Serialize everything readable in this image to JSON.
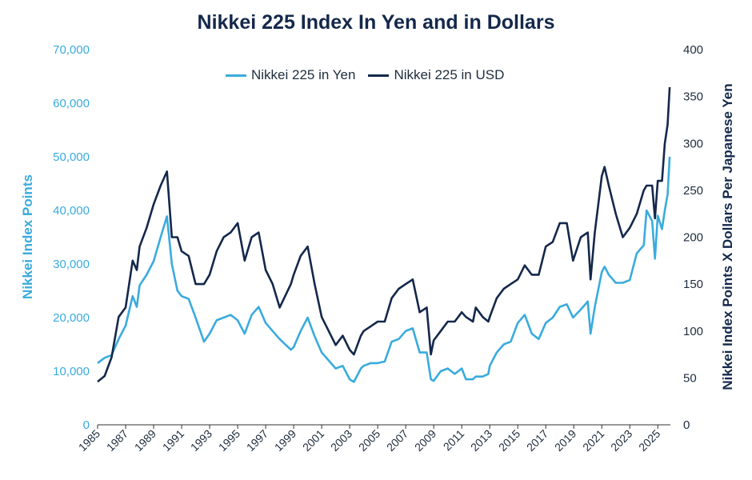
{
  "colors": {
    "yen": "#3aabdd",
    "usd": "#14284b",
    "axis": "#1f2d3d",
    "left_tick": "#3aabdd"
  },
  "chart_data": {
    "type": "line",
    "title": "Nikkei 225 Index In Yen and in Dollars",
    "xlabel": "",
    "ylabel": "Nikkei Index Points",
    "y2label": "Nikkei Index Points X Dollars Per Japanese Yen",
    "xlim": [
      1985,
      2025.9
    ],
    "ylim": [
      0,
      70000
    ],
    "y2lim": [
      0,
      400
    ],
    "x_ticks": [
      "1985",
      "1987",
      "1989",
      "1991",
      "1993",
      "1995",
      "1997",
      "1999",
      "2001",
      "2003",
      "2005",
      "2007",
      "2009",
      "2011",
      "2013",
      "2015",
      "2017",
      "2019",
      "2021",
      "2023",
      "2025"
    ],
    "y_ticks": [
      "0",
      "10,000",
      "20,000",
      "30,000",
      "40,000",
      "50,000",
      "60,000",
      "70,000"
    ],
    "y2_ticks": [
      "0",
      "50",
      "100",
      "150",
      "200",
      "250",
      "300",
      "350",
      "400"
    ],
    "legend": {
      "position": "top-center",
      "entries": [
        "Nikkei 225 in Yen",
        "Nikkei 225 in USD"
      ]
    },
    "series": [
      {
        "name": "Nikkei 225 in Yen",
        "axis": "left",
        "x": [
          1985.0,
          1985.5,
          1986.0,
          1986.5,
          1987.0,
          1987.5,
          1987.8,
          1988.0,
          1988.5,
          1989.0,
          1989.5,
          1989.95,
          1990.3,
          1990.7,
          1991.0,
          1991.5,
          1992.0,
          1992.6,
          1993.0,
          1993.5,
          1994.0,
          1994.5,
          1995.0,
          1995.5,
          1996.0,
          1996.5,
          1997.0,
          1997.5,
          1998.0,
          1998.8,
          1999.0,
          1999.5,
          2000.0,
          2000.5,
          2001.0,
          2001.5,
          2002.0,
          2002.5,
          2003.0,
          2003.3,
          2003.8,
          2004.0,
          2004.5,
          2005.0,
          2005.5,
          2006.0,
          2006.5,
          2007.0,
          2007.5,
          2008.0,
          2008.5,
          2008.8,
          2009.0,
          2009.5,
          2010.0,
          2010.5,
          2011.0,
          2011.3,
          2011.8,
          2012.0,
          2012.5,
          2012.9,
          2013.0,
          2013.5,
          2014.0,
          2014.5,
          2015.0,
          2015.5,
          2016.0,
          2016.5,
          2017.0,
          2017.5,
          2018.0,
          2018.5,
          2018.95,
          2019.5,
          2020.0,
          2020.2,
          2020.5,
          2021.0,
          2021.2,
          2021.5,
          2022.0,
          2022.5,
          2023.0,
          2023.5,
          2024.0,
          2024.2,
          2024.6,
          2024.8,
          2025.0,
          2025.3,
          2025.5,
          2025.7,
          2025.85
        ],
        "values": [
          11500,
          12500,
          13000,
          16000,
          18500,
          24000,
          22000,
          26000,
          28000,
          30500,
          35000,
          38900,
          30000,
          25000,
          24000,
          23500,
          20000,
          15500,
          17000,
          19500,
          20000,
          20500,
          19500,
          17000,
          20500,
          22000,
          19000,
          17500,
          16000,
          14000,
          14500,
          17500,
          20000,
          16500,
          13500,
          12000,
          10500,
          11000,
          8500,
          8000,
          10500,
          11000,
          11500,
          11500,
          11800,
          15500,
          16000,
          17500,
          18000,
          13500,
          13500,
          8500,
          8200,
          10000,
          10500,
          9500,
          10500,
          8500,
          8500,
          9000,
          9000,
          9500,
          11000,
          13500,
          15000,
          15500,
          19000,
          20500,
          17000,
          16000,
          19000,
          20000,
          22000,
          22500,
          20000,
          21500,
          23000,
          17000,
          22000,
          28500,
          29500,
          28000,
          26500,
          26500,
          27000,
          32000,
          33500,
          40000,
          38000,
          31000,
          39000,
          36500,
          40000,
          43000,
          50000
        ]
      },
      {
        "name": "Nikkei 225 in USD",
        "axis": "right",
        "x": [
          1985.0,
          1985.5,
          1986.0,
          1986.5,
          1987.0,
          1987.5,
          1987.8,
          1988.0,
          1988.5,
          1989.0,
          1989.5,
          1989.95,
          1990.3,
          1990.7,
          1991.0,
          1991.5,
          1992.0,
          1992.6,
          1993.0,
          1993.5,
          1994.0,
          1994.5,
          1995.0,
          1995.5,
          1996.0,
          1996.5,
          1997.0,
          1997.5,
          1998.0,
          1998.8,
          1999.0,
          1999.5,
          2000.0,
          2000.5,
          2001.0,
          2001.5,
          2002.0,
          2002.5,
          2003.0,
          2003.3,
          2003.8,
          2004.0,
          2004.5,
          2005.0,
          2005.5,
          2006.0,
          2006.5,
          2007.0,
          2007.5,
          2008.0,
          2008.5,
          2008.8,
          2009.0,
          2009.5,
          2010.0,
          2010.5,
          2011.0,
          2011.3,
          2011.8,
          2012.0,
          2012.5,
          2012.9,
          2013.0,
          2013.5,
          2014.0,
          2014.5,
          2015.0,
          2015.5,
          2016.0,
          2016.5,
          2017.0,
          2017.5,
          2018.0,
          2018.5,
          2018.95,
          2019.5,
          2020.0,
          2020.2,
          2020.5,
          2021.0,
          2021.2,
          2021.5,
          2022.0,
          2022.5,
          2023.0,
          2023.5,
          2024.0,
          2024.2,
          2024.6,
          2024.8,
          2025.0,
          2025.3,
          2025.5,
          2025.7,
          2025.85
        ],
        "values": [
          46,
          52,
          72,
          115,
          125,
          175,
          165,
          190,
          210,
          235,
          255,
          270,
          200,
          200,
          185,
          180,
          150,
          150,
          160,
          185,
          200,
          205,
          215,
          175,
          200,
          205,
          165,
          150,
          125,
          150,
          160,
          180,
          190,
          150,
          115,
          100,
          85,
          95,
          80,
          75,
          95,
          100,
          105,
          110,
          110,
          135,
          145,
          150,
          155,
          120,
          125,
          75,
          90,
          100,
          110,
          110,
          120,
          115,
          110,
          125,
          115,
          110,
          115,
          135,
          145,
          150,
          155,
          170,
          160,
          160,
          190,
          195,
          215,
          215,
          175,
          200,
          205,
          155,
          205,
          265,
          275,
          255,
          225,
          200,
          210,
          225,
          250,
          255,
          255,
          220,
          260,
          260,
          300,
          320,
          360
        ]
      }
    ]
  }
}
